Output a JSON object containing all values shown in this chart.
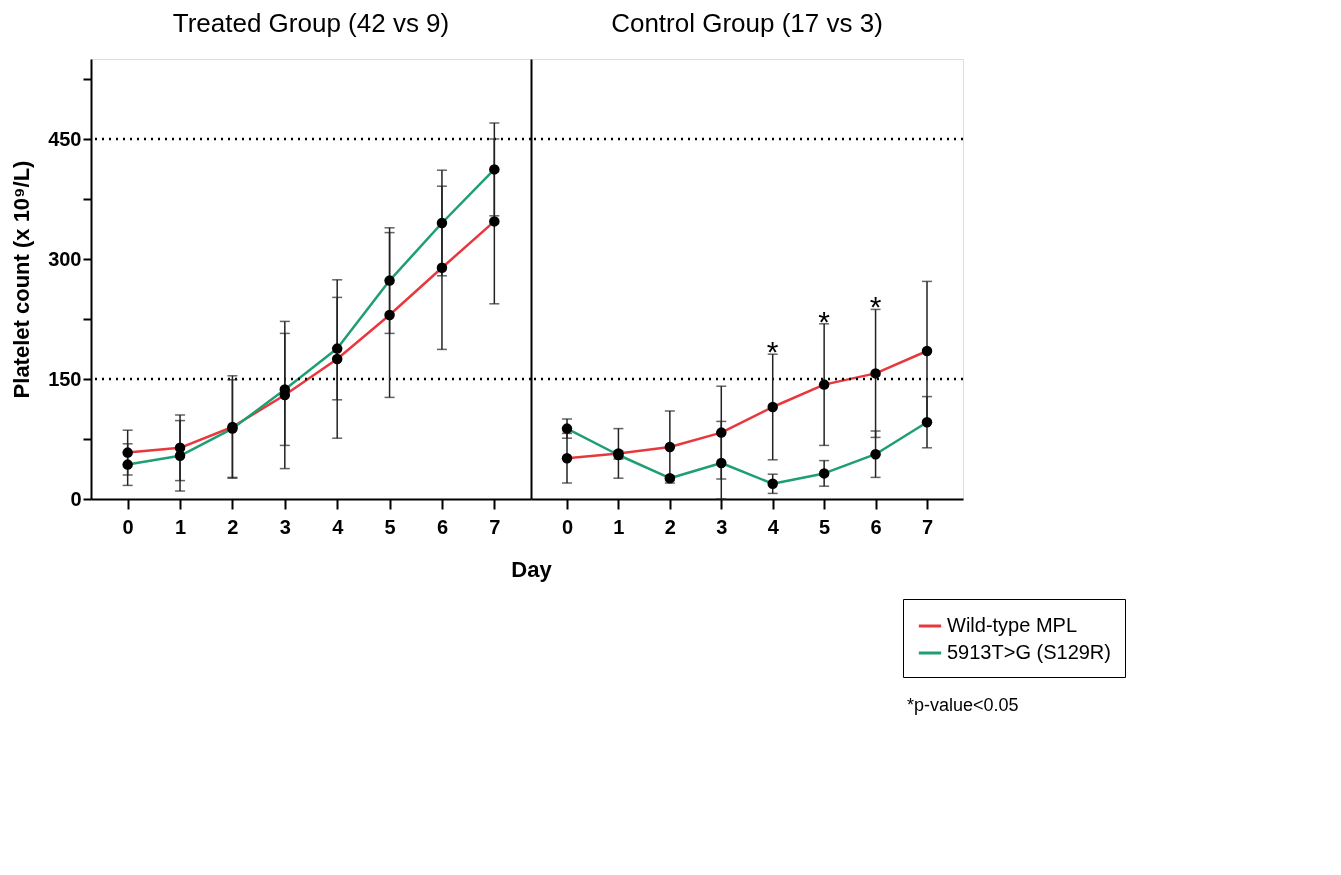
{
  "chart_data": [
    {
      "type": "line",
      "title": "Treated Group (42 vs 9)",
      "xlabel": "Day",
      "ylabel": "Platelet count (x 10⁹/L)",
      "x": [
        0,
        1,
        2,
        3,
        4,
        5,
        6,
        7
      ],
      "xlim": [
        -0.7,
        7.7
      ],
      "xticks": [
        0,
        1,
        2,
        3,
        4,
        5,
        6,
        7
      ],
      "ylim": [
        0,
        550
      ],
      "yticks": [
        0,
        {
          "value": 75,
          "label": null
        },
        150,
        {
          "value": 225,
          "label": null
        },
        300,
        {
          "value": 375,
          "label": null
        },
        450,
        {
          "value": 525,
          "label": null
        }
      ],
      "series": [
        {
          "name": "Wild-type MPL",
          "color": "#e8383d",
          "values": [
            58,
            64,
            90,
            130,
            175,
            230,
            289,
            347
          ],
          "errors": [
            28,
            41,
            64,
            92,
            99,
            103,
            102,
            103
          ]
        },
        {
          "name": "5913T>G (S129R)",
          "color": "#1e9e72",
          "values": [
            43,
            54,
            88,
            137,
            188,
            273,
            345,
            412
          ],
          "errors": [
            26,
            44,
            61,
            70,
            64,
            66,
            66,
            58
          ]
        }
      ],
      "ref_lines": [
        {
          "axis": "y",
          "value": 150,
          "line_style": "dotted"
        },
        {
          "axis": "y",
          "value": 450,
          "line_style": "dotted"
        }
      ],
      "marker": "circle",
      "line_style": "solid",
      "grid": false,
      "legend": "bottom right"
    },
    {
      "type": "line",
      "title": "Control Group (17 vs 3)",
      "x": [
        0,
        1,
        2,
        3,
        4,
        5,
        6,
        7
      ],
      "xlim": [
        -0.7,
        7.7
      ],
      "xticks": [
        0,
        1,
        2,
        3,
        4,
        5,
        6,
        7
      ],
      "ylim": [
        0,
        550
      ],
      "tick_labels": "x",
      "series": [
        {
          "name": "Wild-type MPL",
          "color": "#e8383d",
          "values": [
            51,
            57,
            65,
            83,
            115,
            143,
            157,
            185
          ],
          "errors": [
            31,
            31,
            45,
            58,
            66,
            76,
            80,
            87
          ]
        },
        {
          "name": "5913T>G (S129R)",
          "color": "#1e9e72",
          "values": [
            88,
            55,
            26,
            45,
            19,
            32,
            56,
            96
          ],
          "errors": [
            12,
            5,
            3,
            [
              0,
              97
            ],
            12,
            16,
            29,
            32
          ]
        }
      ],
      "ref_lines": [
        {
          "axis": "y",
          "value": 150,
          "line_style": "dotted"
        },
        {
          "axis": "y",
          "value": 450,
          "line_style": "dotted"
        }
      ],
      "annotations": [
        {
          "text": "*",
          "x": 4,
          "y": 181
        },
        {
          "text": "*",
          "x": 5,
          "y": 219
        },
        {
          "text": "*",
          "x": 6,
          "y": 237
        },
        "*p-value<0.05"
      ],
      "marker": "circle",
      "line_style": "solid",
      "grid": false
    }
  ]
}
